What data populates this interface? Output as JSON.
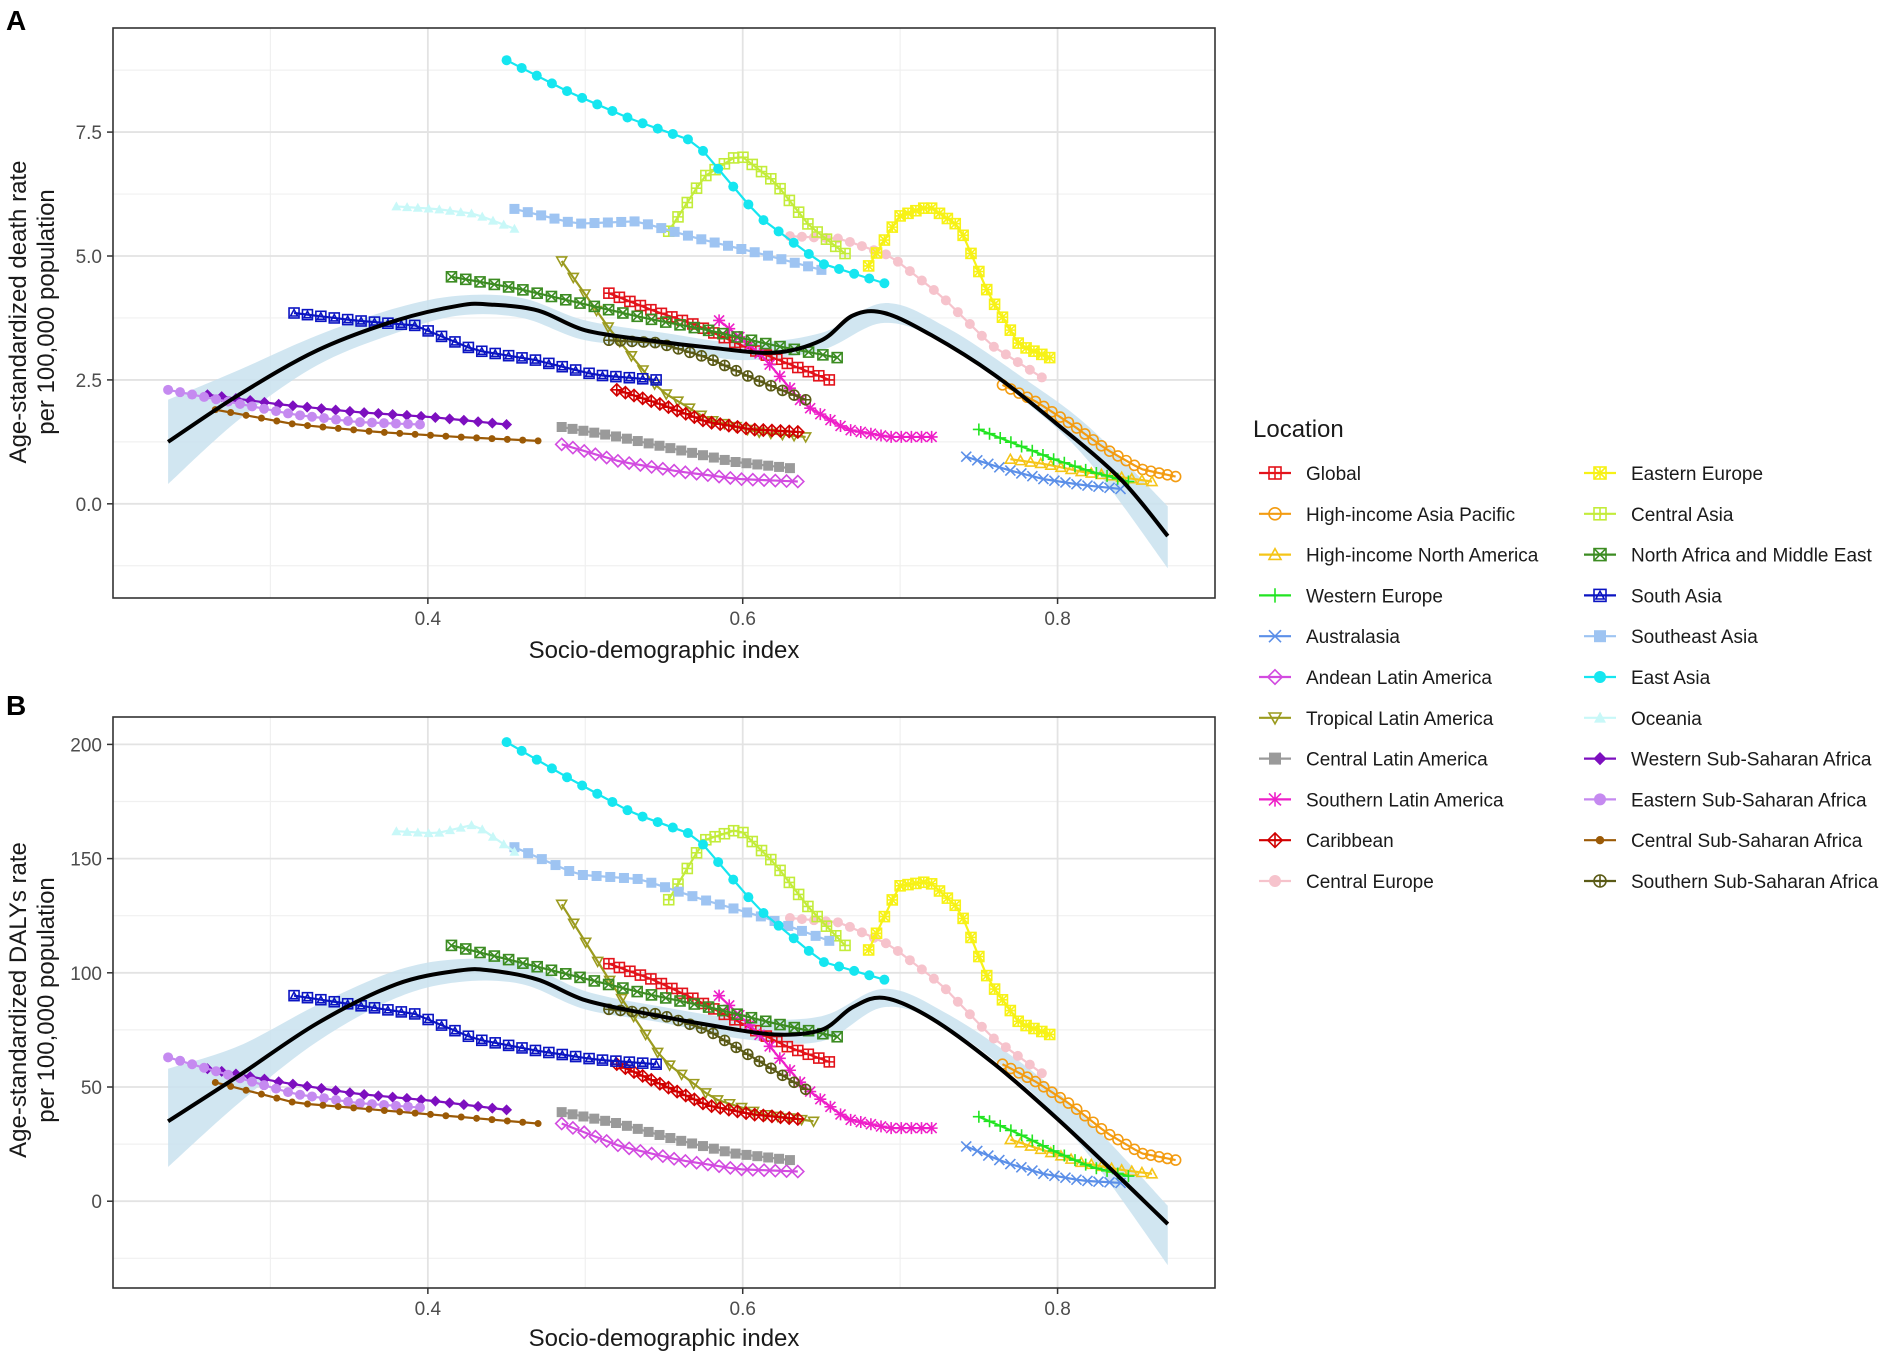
{
  "colors": {
    "Global": "#e3131b",
    "High-income Asia Pacific": "#f39c12",
    "High-income North America": "#f5c518",
    "Western Europe": "#22e422",
    "Australasia": "#5b8fe8",
    "Andean Latin America": "#d24be0",
    "Tropical Latin America": "#9b9b1f",
    "Central Latin America": "#9a9a9a",
    "Southern Latin America": "#ee1fc8",
    "Caribbean": "#d10000",
    "Central Europe": "#f6c3cc",
    "Eastern Europe": "#f7f216",
    "Central Asia": "#c3ec3a",
    "North Africa and Middle East": "#3c8c22",
    "South Asia": "#0b14c2",
    "Southeast Asia": "#9ec4f2",
    "East Asia": "#15e6f0",
    "Oceania": "#c8f8f8",
    "Western Sub-Saharan Africa": "#7d0fbf",
    "Eastern Sub-Saharan Africa": "#c58af0",
    "Central Sub-Saharan Africa": "#9b5a06",
    "Southern Sub-Saharan Africa": "#5a5a16",
    "trend": "#000000",
    "band": "#c9e2ef"
  },
  "legend": {
    "title": "Location",
    "col1": [
      "Global",
      "High-income Asia Pacific",
      "High-income North America",
      "Western Europe",
      "Australasia",
      "Andean Latin America",
      "Tropical Latin America",
      "Central Latin America",
      "Southern Latin America",
      "Caribbean",
      "Central Europe"
    ],
    "col2": [
      "Eastern Europe",
      "Central Asia",
      "North Africa and Middle East",
      "South Asia",
      "Southeast Asia",
      "East Asia",
      "Oceania",
      "Western Sub-Saharan Africa",
      "Eastern Sub-Saharan Africa",
      "Central Sub-Saharan Africa",
      "Southern Sub-Saharan Africa"
    ],
    "markers": {
      "Global": "square-plus",
      "High-income Asia Pacific": "circle",
      "High-income North America": "triangle",
      "Western Europe": "plus",
      "Australasia": "x",
      "Andean Latin America": "diamond",
      "Tropical Latin America": "tri-down",
      "Central Latin America": "square",
      "Southern Latin America": "asterisk",
      "Caribbean": "diamond-plus",
      "Central Europe": "circle-filled",
      "Eastern Europe": "star",
      "Central Asia": "square-plus",
      "North Africa and Middle East": "square-x",
      "South Asia": "square-tri",
      "Southeast Asia": "square-filled",
      "East Asia": "circle-filled",
      "Oceania": "triangle-filled",
      "Western Sub-Saharan Africa": "diamond-filled",
      "Eastern Sub-Saharan Africa": "circle-filled",
      "Central Sub-Saharan Africa": "dot",
      "Southern Sub-Saharan Africa": "circle-plus"
    }
  },
  "chart_data": [
    {
      "type": "scatter",
      "panel_label": "A",
      "xlabel": "Socio-demographic index",
      "ylabel_line1": "Age-standardized death rate",
      "ylabel_line2": "per 100,000 population",
      "xlim": [
        0.2,
        0.9
      ],
      "ylim": [
        -1.9,
        9.6
      ],
      "xticks": [
        0.4,
        0.6,
        0.8
      ],
      "xtick_labels": [
        "0.4",
        "0.6",
        "0.8"
      ],
      "yticks": [
        0,
        2.5,
        5,
        7.5
      ],
      "ytick_labels": [
        "0.0",
        "2.5",
        "5.0",
        "7.5"
      ],
      "trend": {
        "x": [
          0.235,
          0.28,
          0.33,
          0.38,
          0.42,
          0.44,
          0.47,
          0.5,
          0.54,
          0.58,
          0.62,
          0.65,
          0.67,
          0.69,
          0.72,
          0.76,
          0.8,
          0.84,
          0.87
        ],
        "y": [
          1.25,
          2.2,
          3.1,
          3.7,
          4.0,
          4.02,
          3.9,
          3.5,
          3.3,
          3.15,
          3.05,
          3.3,
          3.8,
          3.85,
          3.4,
          2.6,
          1.6,
          0.5,
          -0.65
        ]
      },
      "band": {
        "x": [
          0.235,
          0.28,
          0.33,
          0.38,
          0.42,
          0.46,
          0.5,
          0.55,
          0.6,
          0.65,
          0.69,
          0.73,
          0.78,
          0.82,
          0.87
        ],
        "upper": [
          2.1,
          2.7,
          3.4,
          3.95,
          4.2,
          4.15,
          3.7,
          3.45,
          3.25,
          3.45,
          4.05,
          3.55,
          2.5,
          1.55,
          -0.05
        ],
        "lower": [
          0.4,
          1.7,
          2.8,
          3.45,
          3.8,
          3.75,
          3.3,
          3.15,
          2.9,
          3.1,
          3.65,
          3.2,
          2.05,
          0.85,
          -1.3
        ]
      },
      "series": [
        {
          "name": "Global",
          "x0": 0.515,
          "x1": 0.655,
          "y": [
            4.25,
            3.9,
            3.6,
            3.2,
            2.85,
            2.5
          ],
          "n": 22
        },
        {
          "name": "High-income Asia Pacific",
          "x0": 0.765,
          "x1": 0.875,
          "y": [
            2.4,
            2.05,
            1.6,
            1.1,
            0.7,
            0.55
          ],
          "n": 22
        },
        {
          "name": "High-income North America",
          "x0": 0.77,
          "x1": 0.86,
          "y": [
            0.9,
            0.8,
            0.65,
            0.55,
            0.45
          ],
          "n": 15
        },
        {
          "name": "Western Europe",
          "x0": 0.75,
          "x1": 0.845,
          "y": [
            1.5,
            1.2,
            0.9,
            0.65,
            0.45
          ],
          "n": 15
        },
        {
          "name": "Australasia",
          "x0": 0.742,
          "x1": 0.84,
          "y": [
            0.95,
            0.7,
            0.5,
            0.38,
            0.3
          ],
          "n": 15
        },
        {
          "name": "Andean Latin America",
          "x0": 0.485,
          "x1": 0.635,
          "y": [
            1.2,
            0.85,
            0.65,
            0.5,
            0.45
          ],
          "n": 22
        },
        {
          "name": "Tropical Latin America",
          "x0": 0.485,
          "x1": 0.64,
          "y": [
            4.9,
            3.5,
            2.3,
            1.7,
            1.45,
            1.35
          ],
          "n": 22
        },
        {
          "name": "Central Latin America",
          "x0": 0.485,
          "x1": 0.63,
          "y": [
            1.55,
            1.35,
            1.1,
            0.85,
            0.72
          ],
          "n": 22
        },
        {
          "name": "Southern Latin America",
          "x0": 0.585,
          "x1": 0.72,
          "y": [
            3.7,
            3.0,
            2.0,
            1.5,
            1.35,
            1.35
          ],
          "n": 22
        },
        {
          "name": "Caribbean",
          "x0": 0.52,
          "x1": 0.635,
          "y": [
            2.3,
            2.0,
            1.65,
            1.5,
            1.45
          ],
          "n": 22
        },
        {
          "name": "Central Europe",
          "x0": 0.63,
          "x1": 0.79,
          "y": [
            5.4,
            5.35,
            5.0,
            4.2,
            3.2,
            2.55
          ],
          "n": 22
        },
        {
          "name": "Eastern Europe",
          "x0": 0.68,
          "x1": 0.795,
          "y": [
            4.8,
            5.8,
            6.0,
            5.6,
            4.2,
            3.2,
            2.95
          ],
          "n": 24
        },
        {
          "name": "Central Asia",
          "x0": 0.553,
          "x1": 0.665,
          "y": [
            5.5,
            6.6,
            7.05,
            6.5,
            5.6,
            5.05
          ],
          "n": 20
        },
        {
          "name": "North Africa and Middle East",
          "x0": 0.415,
          "x1": 0.66,
          "y": [
            4.58,
            4.35,
            4.05,
            3.75,
            3.5,
            3.2,
            2.95
          ],
          "n": 28
        },
        {
          "name": "South Asia",
          "x0": 0.315,
          "x1": 0.545,
          "y": [
            3.85,
            3.7,
            3.6,
            3.1,
            2.9,
            2.6,
            2.5
          ],
          "n": 28
        },
        {
          "name": "Southeast Asia",
          "x0": 0.455,
          "x1": 0.65,
          "y": [
            5.95,
            5.65,
            5.7,
            5.35,
            5.05,
            4.72
          ],
          "n": 24
        },
        {
          "name": "East Asia",
          "x0": 0.45,
          "x1": 0.69,
          "y": [
            8.95,
            8.3,
            7.75,
            7.3,
            5.8,
            4.85,
            4.45
          ],
          "n": 26
        },
        {
          "name": "Oceania",
          "x0": 0.38,
          "x1": 0.455,
          "y": [
            6.0,
            5.95,
            5.85,
            5.55
          ],
          "n": 12
        },
        {
          "name": "Western Sub-Saharan Africa",
          "x0": 0.26,
          "x1": 0.45,
          "y": [
            2.2,
            2.0,
            1.85,
            1.75,
            1.6
          ],
          "n": 22
        },
        {
          "name": "Eastern Sub-Saharan Africa",
          "x0": 0.235,
          "x1": 0.395,
          "y": [
            2.3,
            2.05,
            1.8,
            1.65,
            1.6
          ],
          "n": 22
        },
        {
          "name": "Central Sub-Saharan Africa",
          "x0": 0.265,
          "x1": 0.47,
          "y": [
            1.9,
            1.6,
            1.45,
            1.35,
            1.27
          ],
          "n": 22
        },
        {
          "name": "Southern Sub-Saharan Africa",
          "x0": 0.515,
          "x1": 0.64,
          "y": [
            3.3,
            3.25,
            2.95,
            2.5,
            2.1
          ],
          "n": 18
        }
      ]
    },
    {
      "type": "scatter",
      "panel_label": "B",
      "xlabel": "Socio-demographic index",
      "ylabel_line1": "Age-standardized DALYs rate",
      "ylabel_line2": "per 100,000 population",
      "xlim": [
        0.2,
        0.9
      ],
      "ylim": [
        -38,
        212
      ],
      "xticks": [
        0.4,
        0.6,
        0.8
      ],
      "xtick_labels": [
        "0.4",
        "0.6",
        "0.8"
      ],
      "yticks": [
        0,
        50,
        100,
        150,
        200
      ],
      "ytick_labels": [
        "0",
        "50",
        "100",
        "150",
        "200"
      ],
      "trend": {
        "x": [
          0.235,
          0.28,
          0.33,
          0.38,
          0.42,
          0.44,
          0.47,
          0.5,
          0.54,
          0.58,
          0.62,
          0.65,
          0.67,
          0.69,
          0.72,
          0.76,
          0.8,
          0.84,
          0.87
        ],
        "y": [
          35,
          55,
          78,
          95,
          101,
          101,
          97,
          88,
          82,
          77,
          73,
          75,
          85,
          89,
          80,
          60,
          36,
          10,
          -10
        ]
      },
      "band": {
        "x": [
          0.235,
          0.28,
          0.33,
          0.38,
          0.42,
          0.46,
          0.5,
          0.55,
          0.6,
          0.65,
          0.69,
          0.73,
          0.78,
          0.82,
          0.87
        ],
        "upper": [
          58,
          68,
          86,
          101,
          106,
          104,
          92,
          85,
          80,
          81,
          93,
          82,
          59,
          35,
          -2
        ],
        "lower": [
          15,
          43,
          70,
          89,
          96,
          95,
          84,
          78,
          71,
          70,
          85,
          76,
          50,
          20,
          -28
        ]
      },
      "series": [
        {
          "name": "Global",
          "x0": 0.515,
          "x1": 0.655,
          "y": [
            104,
            97,
            88,
            78,
            68,
            61
          ],
          "n": 22
        },
        {
          "name": "High-income Asia Pacific",
          "x0": 0.765,
          "x1": 0.875,
          "y": [
            60,
            52,
            42,
            30,
            21,
            18
          ],
          "n": 22
        },
        {
          "name": "High-income North America",
          "x0": 0.77,
          "x1": 0.86,
          "y": [
            27,
            22,
            17,
            14,
            12
          ],
          "n": 15
        },
        {
          "name": "Western Europe",
          "x0": 0.75,
          "x1": 0.845,
          "y": [
            37,
            30,
            22,
            15,
            11
          ],
          "n": 15
        },
        {
          "name": "Australasia",
          "x0": 0.742,
          "x1": 0.84,
          "y": [
            24,
            17,
            12,
            9,
            8
          ],
          "n": 15
        },
        {
          "name": "Andean Latin America",
          "x0": 0.485,
          "x1": 0.635,
          "y": [
            34,
            24,
            18,
            14,
            13
          ],
          "n": 22
        },
        {
          "name": "Tropical Latin America",
          "x0": 0.485,
          "x1": 0.645,
          "y": [
            130,
            95,
            62,
            45,
            38,
            35
          ],
          "n": 22
        },
        {
          "name": "Central Latin America",
          "x0": 0.485,
          "x1": 0.63,
          "y": [
            39,
            34,
            27,
            21,
            18
          ],
          "n": 22
        },
        {
          "name": "Southern Latin America",
          "x0": 0.585,
          "x1": 0.72,
          "y": [
            90,
            72,
            50,
            36,
            32,
            32
          ],
          "n": 22
        },
        {
          "name": "Caribbean",
          "x0": 0.52,
          "x1": 0.635,
          "y": [
            60,
            51,
            42,
            38,
            36
          ],
          "n": 22
        },
        {
          "name": "Central Europe",
          "x0": 0.63,
          "x1": 0.79,
          "y": [
            124,
            122,
            112,
            95,
            72,
            56
          ],
          "n": 22
        },
        {
          "name": "Eastern Europe",
          "x0": 0.68,
          "x1": 0.795,
          "y": [
            110,
            138,
            140,
            128,
            96,
            78,
            73
          ],
          "n": 24
        },
        {
          "name": "Central Asia",
          "x0": 0.553,
          "x1": 0.665,
          "y": [
            132,
            158,
            163,
            148,
            128,
            112
          ],
          "n": 20
        },
        {
          "name": "North Africa and Middle East",
          "x0": 0.415,
          "x1": 0.66,
          "y": [
            112,
            105,
            98,
            91,
            85,
            78,
            72
          ],
          "n": 28
        },
        {
          "name": "South Asia",
          "x0": 0.315,
          "x1": 0.545,
          "y": [
            90,
            86,
            82,
            71,
            66,
            62,
            60
          ],
          "n": 28
        },
        {
          "name": "Southeast Asia",
          "x0": 0.455,
          "x1": 0.655,
          "y": [
            155,
            143,
            141,
            132,
            124,
            114
          ],
          "n": 24
        },
        {
          "name": "East Asia",
          "x0": 0.45,
          "x1": 0.69,
          "y": [
            201,
            185,
            170,
            160,
            128,
            105,
            97
          ],
          "n": 26
        },
        {
          "name": "Oceania",
          "x0": 0.38,
          "x1": 0.455,
          "y": [
            162,
            161,
            165,
            153
          ],
          "n": 12
        },
        {
          "name": "Western Sub-Saharan Africa",
          "x0": 0.26,
          "x1": 0.45,
          "y": [
            58,
            52,
            47,
            44,
            40
          ],
          "n": 22
        },
        {
          "name": "Eastern Sub-Saharan Africa",
          "x0": 0.235,
          "x1": 0.395,
          "y": [
            63,
            55,
            47,
            43,
            41
          ],
          "n": 22
        },
        {
          "name": "Central Sub-Saharan Africa",
          "x0": 0.265,
          "x1": 0.47,
          "y": [
            52,
            43,
            40,
            37,
            34
          ],
          "n": 22
        },
        {
          "name": "Southern Sub-Saharan Africa",
          "x0": 0.515,
          "x1": 0.64,
          "y": [
            84,
            82,
            75,
            62,
            49
          ],
          "n": 18
        }
      ]
    }
  ]
}
